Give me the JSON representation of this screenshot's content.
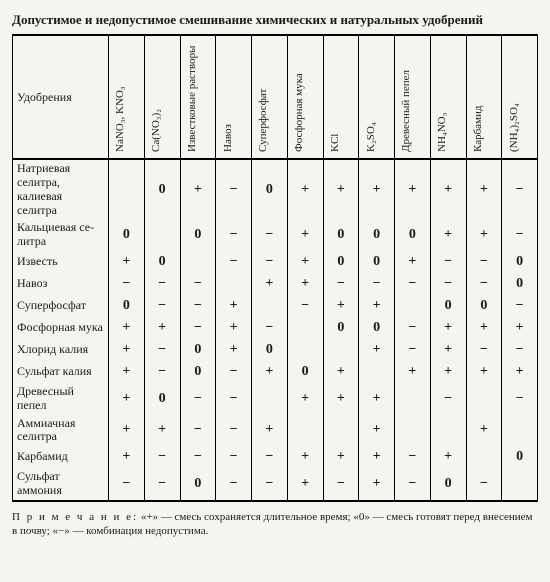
{
  "title": "Допустимое и недопустимое смешивание химических и натуральных удобрений",
  "rowHeaderLabel": "Удобрения",
  "columns": [
    "NaNO₃, KNO₃",
    "Ca(NO₃)₂",
    "Известковые растворы",
    "Навоз",
    "Суперфосфат",
    "Фосфорная мука",
    "KCl",
    "K₂SO₄",
    "Древесный пепел",
    "NH₄NO₃",
    "Карбамид",
    "(NH₄)₂SO₄"
  ],
  "rows": [
    {
      "label": "Натриевая селитра, калиевая селитра",
      "cells": [
        "",
        "0",
        "+",
        "−",
        "0",
        "+",
        "+",
        "+",
        "+",
        "+",
        "+",
        "−"
      ]
    },
    {
      "label": "Кальцие­вая се­литра",
      "cells": [
        "0",
        "",
        "0",
        "−",
        "−",
        "+",
        "0",
        "0",
        "0",
        "+",
        "+",
        "−"
      ]
    },
    {
      "label": "Известь",
      "cells": [
        "+",
        "0",
        "",
        "−",
        "−",
        "+",
        "0",
        "0",
        "+",
        "−",
        "−",
        "0"
      ]
    },
    {
      "label": "Навоз",
      "cells": [
        "−",
        "−",
        "−",
        "",
        "+",
        "+",
        "−",
        "−",
        "−",
        "−",
        "−",
        "0"
      ]
    },
    {
      "label": "Суперфос­фат",
      "cells": [
        "0",
        "−",
        "−",
        "+",
        "",
        "−",
        "+",
        "+",
        "",
        "0",
        "0",
        "−"
      ]
    },
    {
      "label": "Фосфор­ная мука",
      "cells": [
        "+",
        "+",
        "−",
        "+",
        "−",
        "",
        "0",
        "0",
        "−",
        "+",
        "+",
        "+"
      ]
    },
    {
      "label": "Хлорид ка­лия",
      "cells": [
        "+",
        "−",
        "0",
        "+",
        "0",
        "",
        "",
        "+",
        "−",
        "+",
        "−",
        "−"
      ]
    },
    {
      "label": "Сульфат калия",
      "cells": [
        "+",
        "−",
        "0",
        "−",
        "+",
        "0",
        "+",
        "",
        "+",
        "+",
        "+",
        "+"
      ]
    },
    {
      "label": "Древесный пепел",
      "cells": [
        "+",
        "0",
        "−",
        "−",
        "",
        "+",
        "+",
        "+",
        "",
        "−",
        "",
        "−"
      ]
    },
    {
      "label": "Аммиачная селитра",
      "cells": [
        "+",
        "+",
        "−",
        "−",
        "+",
        "",
        "",
        "+",
        "",
        "",
        "+",
        ""
      ]
    },
    {
      "label": "Карбамид",
      "cells": [
        "+",
        "−",
        "−",
        "−",
        "−",
        "+",
        "+",
        "+",
        "−",
        "+",
        "",
        "0"
      ]
    },
    {
      "label": "Сульфат аммония",
      "cells": [
        "−",
        "−",
        "0",
        "−",
        "−",
        "+",
        "−",
        "+",
        "−",
        "0",
        "−",
        ""
      ]
    }
  ],
  "note": {
    "label": "П р и м е ч а н и е:",
    "body": "«+» — смесь сохраняется длительное время; «0» — смесь готовят перед внесением в почву; «−» — комбинация недопустима."
  }
}
